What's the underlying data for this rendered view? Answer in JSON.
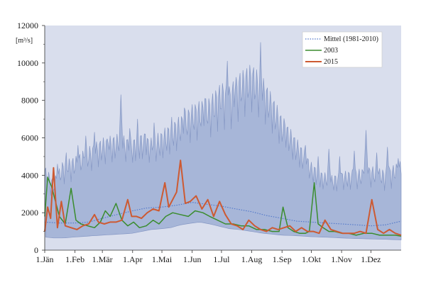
{
  "chart_data": {
    "type": "area",
    "ylabel": "[m³/s]",
    "ylim": [
      0,
      12000
    ],
    "yticks": [
      0,
      2000,
      4000,
      6000,
      8000,
      10000,
      12000
    ],
    "ytick_labels": [
      "0",
      "2000",
      "4000",
      "6000",
      "8000",
      "10000",
      "12000"
    ],
    "xlim": [
      1,
      366
    ],
    "xticks": [
      1,
      32,
      60,
      91,
      121,
      152,
      182,
      213,
      244,
      274,
      305,
      335
    ],
    "xtick_labels": [
      "1.Jän",
      "1.Feb",
      "1.Mär",
      "1.Apr",
      "1.Mai",
      "1.Jun",
      "1.Jul",
      "1.Aug",
      "1.Sep",
      "1.Okt",
      "1.Nov",
      "1.Dez"
    ],
    "grid": false,
    "legend_position": "top-right",
    "colors": {
      "envelope_fill": "#a7b6d8",
      "envelope_edge": "#8597c4",
      "plot_background": "#d9deed",
      "mean": "#4f76c9",
      "y2003": "#3a8c2e",
      "y2015": "#cd5a32"
    },
    "envelope": {
      "x": [
        1,
        10,
        20,
        32,
        45,
        60,
        75,
        91,
        100,
        110,
        121,
        130,
        140,
        152,
        160,
        170,
        182,
        190,
        200,
        213,
        225,
        235,
        244,
        255,
        265,
        274,
        285,
        295,
        305,
        320,
        335,
        350,
        366
      ],
      "min": [
        700,
        650,
        650,
        700,
        750,
        800,
        850,
        900,
        1000,
        1100,
        1150,
        1200,
        1350,
        1450,
        1500,
        1400,
        1250,
        1150,
        1100,
        1000,
        900,
        850,
        800,
        780,
        750,
        720,
        700,
        680,
        650,
        620,
        600,
        580,
        550
      ],
      "max": [
        4500,
        3800,
        4800,
        5000,
        5500,
        6000,
        6200,
        6000,
        6300,
        6000,
        6400,
        6800,
        7200,
        7800,
        8000,
        8200,
        9000,
        8800,
        9500,
        10000,
        9200,
        8200,
        7200,
        6300,
        5500,
        4700,
        4200,
        4000,
        4200,
        4300,
        4500,
        4300,
        4800
      ],
      "spikes": [
        {
          "x": 14,
          "y": 4600
        },
        {
          "x": 23,
          "y": 5200
        },
        {
          "x": 35,
          "y": 5600
        },
        {
          "x": 43,
          "y": 6100
        },
        {
          "x": 52,
          "y": 6300
        },
        {
          "x": 66,
          "y": 5700
        },
        {
          "x": 79,
          "y": 8300
        },
        {
          "x": 88,
          "y": 6500
        },
        {
          "x": 96,
          "y": 7000
        },
        {
          "x": 104,
          "y": 6200
        },
        {
          "x": 113,
          "y": 6800
        },
        {
          "x": 131,
          "y": 7100
        },
        {
          "x": 144,
          "y": 7600
        },
        {
          "x": 165,
          "y": 8100
        },
        {
          "x": 176,
          "y": 7700
        },
        {
          "x": 188,
          "y": 10100
        },
        {
          "x": 196,
          "y": 8600
        },
        {
          "x": 204,
          "y": 9500
        },
        {
          "x": 215,
          "y": 9400
        },
        {
          "x": 222,
          "y": 11100
        },
        {
          "x": 236,
          "y": 7300
        },
        {
          "x": 247,
          "y": 6700
        },
        {
          "x": 256,
          "y": 5900
        },
        {
          "x": 268,
          "y": 5600
        },
        {
          "x": 281,
          "y": 5000
        },
        {
          "x": 292,
          "y": 5400
        },
        {
          "x": 303,
          "y": 5000
        },
        {
          "x": 318,
          "y": 5300
        },
        {
          "x": 330,
          "y": 6400
        },
        {
          "x": 341,
          "y": 5200
        },
        {
          "x": 352,
          "y": 5500
        },
        {
          "x": 363,
          "y": 4900
        }
      ]
    },
    "series": [
      {
        "name": "Mittel (1981-2010)",
        "style": "dotted",
        "x": [
          1,
          15,
          32,
          46,
          60,
          75,
          91,
          105,
          121,
          136,
          152,
          167,
          182,
          197,
          213,
          228,
          244,
          259,
          274,
          289,
          305,
          320,
          335,
          350,
          366
        ],
        "y": [
          1500,
          1450,
          1450,
          1500,
          1700,
          1900,
          2100,
          2250,
          2300,
          2400,
          2550,
          2450,
          2350,
          2200,
          2050,
          1850,
          1700,
          1550,
          1500,
          1450,
          1400,
          1350,
          1300,
          1350,
          1550
        ]
      },
      {
        "name": "2003",
        "style": "solid",
        "x": [
          1,
          4,
          8,
          12,
          16,
          22,
          28,
          33,
          38,
          45,
          52,
          58,
          63,
          68,
          74,
          80,
          86,
          92,
          98,
          105,
          112,
          118,
          125,
          132,
          140,
          148,
          155,
          163,
          170,
          178,
          186,
          194,
          202,
          210,
          218,
          226,
          234,
          241,
          245,
          250,
          256,
          262,
          268,
          272,
          277,
          281,
          286,
          292,
          298,
          305,
          312,
          320,
          328,
          336,
          344,
          352,
          360,
          366
        ],
        "y": [
          1800,
          3900,
          3400,
          2600,
          1800,
          1400,
          3300,
          1600,
          1400,
          1300,
          1200,
          1500,
          2100,
          1800,
          2500,
          1600,
          1300,
          1500,
          1200,
          1300,
          1600,
          1400,
          1800,
          2000,
          1900,
          1800,
          2100,
          2000,
          1800,
          1600,
          1400,
          1400,
          1300,
          1300,
          1100,
          1100,
          1000,
          1000,
          2300,
          1200,
          1000,
          900,
          900,
          1000,
          3600,
          1400,
          1200,
          1000,
          1000,
          900,
          900,
          800,
          900,
          900,
          800,
          800,
          800,
          750
        ]
      },
      {
        "name": "2015",
        "style": "solid",
        "x": [
          1,
          4,
          7,
          10,
          14,
          18,
          22,
          28,
          34,
          40,
          46,
          52,
          56,
          62,
          68,
          74,
          80,
          86,
          90,
          95,
          100,
          106,
          112,
          118,
          124,
          128,
          132,
          136,
          140,
          145,
          150,
          156,
          162,
          168,
          174,
          180,
          186,
          192,
          198,
          204,
          210,
          216,
          222,
          228,
          234,
          240,
          246,
          252,
          258,
          264,
          270,
          276,
          282,
          288,
          294,
          300,
          306,
          312,
          318,
          324,
          330,
          336,
          342,
          348,
          354,
          360,
          366
        ],
        "y": [
          1000,
          2300,
          1700,
          4400,
          1200,
          2600,
          1300,
          1200,
          1100,
          1300,
          1400,
          1900,
          1500,
          1400,
          1500,
          1500,
          1600,
          2700,
          1800,
          1800,
          1700,
          2000,
          2200,
          2100,
          3600,
          2300,
          2700,
          3100,
          4800,
          2500,
          2600,
          2900,
          2200,
          2700,
          1800,
          2600,
          1900,
          1400,
          1300,
          1100,
          1600,
          1300,
          1100,
          1000,
          1200,
          1100,
          1200,
          1300,
          1000,
          1200,
          1000,
          1000,
          900,
          1600,
          1100,
          1000,
          900,
          900,
          900,
          1000,
          900,
          2700,
          1100,
          900,
          1100,
          900,
          800
        ]
      }
    ]
  }
}
